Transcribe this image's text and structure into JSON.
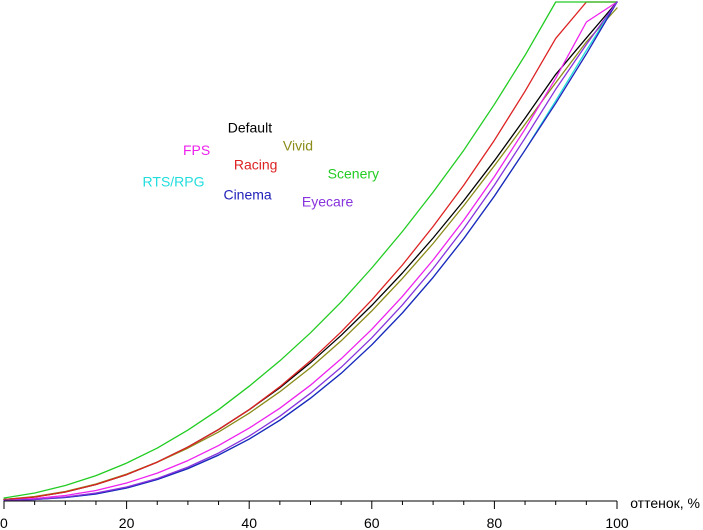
{
  "chart_data": {
    "type": "line",
    "title": "",
    "xlabel": "оттенок, %",
    "ylabel": "",
    "xlim": [
      0,
      100
    ],
    "ylim": [
      0,
      100
    ],
    "x_ticks": [
      0,
      20,
      40,
      60,
      80,
      100
    ],
    "grid": false,
    "x": [
      0,
      5,
      10,
      15,
      20,
      25,
      30,
      35,
      40,
      45,
      50,
      55,
      60,
      65,
      70,
      75,
      80,
      85,
      90,
      95,
      100
    ],
    "series": [
      {
        "name": "Default",
        "color": "#000000",
        "values": [
          0.3,
          0.8,
          1.8,
          3.3,
          5.3,
          7.8,
          10.8,
          14.3,
          18.3,
          22.7,
          27.7,
          33.2,
          39.2,
          45.7,
          52.7,
          60.2,
          68.2,
          76.7,
          85.5,
          92.8,
          100
        ]
      },
      {
        "name": "Vivid",
        "color": "#8b8b1a",
        "values": [
          0.3,
          0.9,
          1.9,
          3.4,
          5.4,
          7.8,
          10.6,
          13.8,
          17.6,
          21.9,
          26.7,
          32.1,
          38.1,
          44.6,
          51.6,
          59.2,
          67.2,
          75.5,
          83.8,
          92.0,
          98.8
        ]
      },
      {
        "name": "FPS",
        "color": "#ee22ee",
        "values": [
          0.2,
          0.5,
          1.1,
          2.1,
          3.6,
          5.6,
          8.1,
          11.1,
          14.6,
          18.6,
          23.2,
          28.5,
          34.4,
          41.0,
          48.3,
          56.3,
          65.0,
          74.5,
          84.7,
          96.0,
          100
        ]
      },
      {
        "name": "Racing",
        "color": "#dd2222",
        "values": [
          0.3,
          0.8,
          1.8,
          3.3,
          5.3,
          7.8,
          10.8,
          14.3,
          18.3,
          22.9,
          28.1,
          33.9,
          40.3,
          47.3,
          55.0,
          63.3,
          72.3,
          82.1,
          92.7,
          100,
          100
        ]
      },
      {
        "name": "Scenery",
        "color": "#22cc22",
        "values": [
          0.6,
          1.6,
          3.1,
          5.1,
          7.6,
          10.6,
          14.2,
          18.3,
          23.0,
          28.1,
          33.7,
          39.9,
          46.7,
          54.0,
          61.9,
          70.3,
          79.5,
          89.3,
          100,
          100,
          100
        ]
      },
      {
        "name": "RTS/RPG",
        "color": "#22dddd",
        "values": [
          0.1,
          0.3,
          0.7,
          1.4,
          2.6,
          4.3,
          6.5,
          9.2,
          12.4,
          16.2,
          20.6,
          25.6,
          31.3,
          37.7,
          44.8,
          52.6,
          61.1,
          70.3,
          80.2,
          90.3,
          100
        ]
      },
      {
        "name": "Cinema",
        "color": "#2222bb",
        "values": [
          0.1,
          0.3,
          0.7,
          1.4,
          2.6,
          4.3,
          6.5,
          9.2,
          12.4,
          16.2,
          20.6,
          25.6,
          31.3,
          37.7,
          44.8,
          52.6,
          61.1,
          70.3,
          79.7,
          89.6,
          100
        ]
      },
      {
        "name": "Eyecare",
        "color": "#8833dd",
        "values": [
          0.1,
          0.3,
          0.8,
          1.6,
          2.8,
          4.5,
          6.8,
          9.6,
          13.0,
          17.0,
          21.6,
          26.8,
          32.7,
          39.3,
          46.6,
          54.6,
          63.3,
          72.7,
          82.5,
          91.5,
          100
        ]
      }
    ],
    "legend": {
      "placement": "upper-left-inside",
      "items": [
        {
          "series": "Default",
          "x": 36.5,
          "y": 73.8
        },
        {
          "series": "Vivid",
          "x": 45.5,
          "y": 70.2
        },
        {
          "series": "FPS",
          "x": 29.2,
          "y": 69.3
        },
        {
          "series": "Racing",
          "x": 37.5,
          "y": 66.4
        },
        {
          "series": "Scenery",
          "x": 52.8,
          "y": 64.6
        },
        {
          "series": "RTS/RPG",
          "x": 22.6,
          "y": 63.0
        },
        {
          "series": "Cinema",
          "x": 35.8,
          "y": 60.4
        },
        {
          "series": "Eyecare",
          "x": 48.6,
          "y": 59.0
        }
      ]
    }
  }
}
